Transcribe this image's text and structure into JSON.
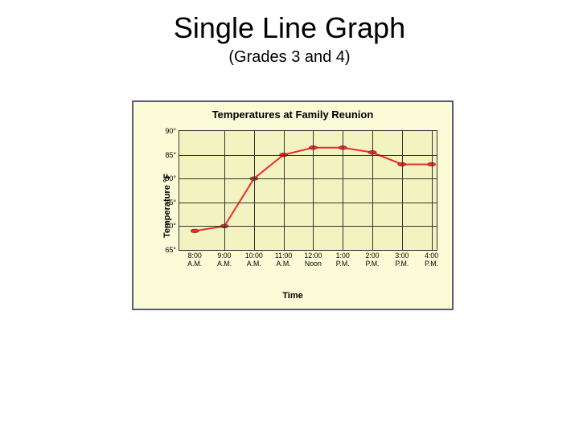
{
  "slide": {
    "title": "Single Line Graph",
    "subtitle": "(Grades 3 and 4)"
  },
  "chart": {
    "type": "line",
    "title": "Temperatures at Family Reunion",
    "y_axis": {
      "label": "Temperature °F",
      "min": 65,
      "max": 90,
      "tick_step": 5,
      "ticks": [
        65,
        70,
        75,
        80,
        85,
        90
      ],
      "tick_labels": [
        "65°",
        "70°",
        "75°",
        "80°",
        "85°",
        "90°"
      ],
      "label_fontsize": 11,
      "tick_fontsize": 9
    },
    "x_axis": {
      "label": "Time",
      "categories": [
        "8:00\nA.M.",
        "9:00\nA.M.",
        "10:00\nA.M.",
        "11:00\nA.M.",
        "12:00\nNoon",
        "1:00\nP.M.",
        "2:00\nP.M.",
        "3:00\nP.M.",
        "4:00\nP.M."
      ],
      "label_fontsize": 11,
      "tick_fontsize": 8.8
    },
    "series": {
      "values": [
        69,
        70,
        80,
        85,
        86.5,
        86.5,
        85.5,
        83,
        83
      ],
      "line_color": "#ef2b2b",
      "line_width": 2,
      "marker_shape": "circle",
      "marker_size": 4,
      "marker_fill": "#ef2b2b",
      "marker_stroke": "#7a0000"
    },
    "colors": {
      "panel_background": "#fbfbd8",
      "plot_background": "#f3f3c2",
      "panel_border": "#5a5a7a",
      "grid_color": "#333333",
      "title_color": "#000000"
    },
    "title_fontsize": 13
  }
}
